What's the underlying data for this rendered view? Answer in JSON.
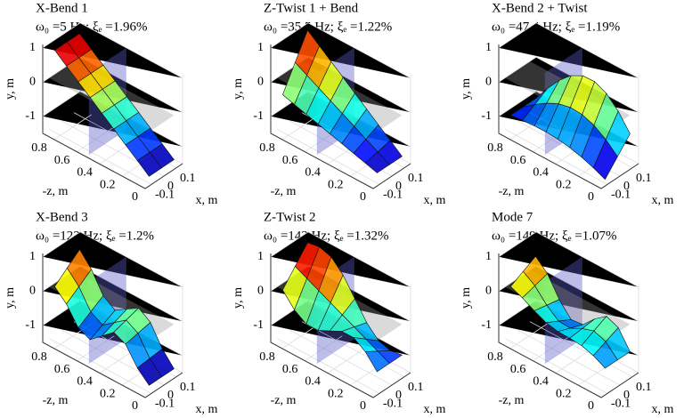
{
  "chart_data": [
    {
      "type": "surface",
      "title": "X-Bend 1",
      "subtitle": "ω₀ =5 Hz; ξₑ =1.96%",
      "xlabel": "x, m",
      "ylabel": "y, m",
      "zlabel": "-z, m",
      "xlim": [
        -0.15,
        0.15
      ],
      "xticks": [
        -0.1,
        0,
        0.1
      ],
      "ylim": [
        -1.5,
        1.1
      ],
      "yticks": [
        1,
        0,
        -1
      ],
      "zlim": [
        0,
        0.9
      ],
      "zticks": [
        0.8,
        0.6,
        0.4,
        0.2,
        0
      ]
    },
    {
      "type": "surface",
      "title": "Z-Twist 1 + Bend",
      "subtitle": "ω₀ =35.5 Hz; ξₑ =1.22%",
      "xlabel": "x, m",
      "ylabel": "y, m",
      "zlabel": "-z, m",
      "xlim": [
        -0.15,
        0.15
      ],
      "xticks": [
        -0.1,
        0,
        0.1
      ],
      "ylim": [
        -1.5,
        1.1
      ],
      "yticks": [
        1,
        0,
        -1
      ],
      "zlim": [
        0,
        0.9
      ],
      "zticks": [
        0.8,
        0.6,
        0.4,
        0.2,
        0
      ]
    },
    {
      "type": "surface",
      "title": "X-Bend 2 + Twist",
      "subtitle": "ω₀ =47.4 Hz; ξₑ =1.19%",
      "xlabel": "x, m",
      "ylabel": "y, m",
      "zlabel": "-z, m",
      "xlim": [
        -0.15,
        0.15
      ],
      "xticks": [
        -0.1,
        0,
        0.1
      ],
      "ylim": [
        -1.5,
        1.1
      ],
      "yticks": [
        1,
        0,
        -1
      ],
      "zlim": [
        0,
        0.9
      ],
      "zticks": [
        0.8,
        0.6,
        0.4,
        0.2,
        0
      ]
    },
    {
      "type": "surface",
      "title": "X-Bend 3",
      "subtitle": "ω₀ =122 Hz; ξₑ =1.2%",
      "xlabel": "x, m",
      "ylabel": "y, m",
      "zlabel": "-z, m",
      "xlim": [
        -0.15,
        0.15
      ],
      "xticks": [
        -0.1,
        0,
        0.1
      ],
      "ylim": [
        -1.5,
        1.1
      ],
      "yticks": [
        1,
        0,
        -1
      ],
      "zlim": [
        0,
        0.9
      ],
      "zticks": [
        0.8,
        0.6,
        0.4,
        0.2,
        0
      ]
    },
    {
      "type": "surface",
      "title": "Z-Twist 2",
      "subtitle": "ω₀ =143 Hz; ξₑ =1.32%",
      "xlabel": "x, m",
      "ylabel": "y, m",
      "zlabel": "-z, m",
      "xlim": [
        -0.15,
        0.15
      ],
      "xticks": [
        -0.1,
        0,
        0.1
      ],
      "ylim": [
        -1.5,
        1.1
      ],
      "yticks": [
        1,
        0,
        -1
      ],
      "zlim": [
        0,
        0.9
      ],
      "zticks": [
        0.8,
        0.6,
        0.4,
        0.2,
        0
      ]
    },
    {
      "type": "surface",
      "title": "Mode 7",
      "subtitle": "ω₀ =149 Hz; ξₑ =1.07%",
      "xlabel": "x, m",
      "ylabel": "y, m",
      "zlabel": "-z, m",
      "xlim": [
        -0.15,
        0.15
      ],
      "xticks": [
        -0.1,
        0,
        0.1
      ],
      "ylim": [
        -1.5,
        1.1
      ],
      "yticks": [
        1,
        0,
        -1
      ],
      "zlim": [
        0,
        0.9
      ],
      "zticks": [
        0.8,
        0.6,
        0.4,
        0.2,
        0
      ]
    }
  ]
}
